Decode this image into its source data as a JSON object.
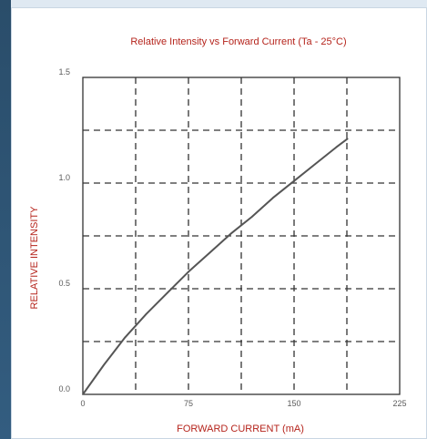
{
  "chart_data": {
    "type": "line",
    "title": "Relative Intensity vs Forward Current (Ta - 25°C)",
    "xlabel": "FORWARD CURRENT (mA)",
    "ylabel": "RELATIVE INTENSITY",
    "xlim": [
      0,
      225
    ],
    "ylim": [
      0,
      1.5
    ],
    "x_ticks": [
      0,
      75,
      150,
      225
    ],
    "x_tick_labels": [
      "0",
      "75",
      "150",
      "225"
    ],
    "y_ticks": [
      0,
      0.5,
      1.0,
      1.5
    ],
    "y_tick_labels": [
      "0.0",
      "0.5",
      "1.0",
      "1.5"
    ],
    "x_gridlines": [
      37.5,
      75,
      112.5,
      150,
      187.5
    ],
    "y_gridlines": [
      0.25,
      0.5,
      0.75,
      1.0,
      1.25
    ],
    "grid": true,
    "series": [
      {
        "x": [
          0,
          15,
          30,
          45,
          60,
          75,
          90,
          105,
          120,
          135,
          150,
          165,
          180,
          188
        ],
        "values": [
          0,
          0.14,
          0.27,
          0.38,
          0.48,
          0.58,
          0.67,
          0.76,
          0.84,
          0.93,
          1.01,
          1.09,
          1.17,
          1.21
        ]
      }
    ],
    "colors": {
      "title": "#b5241c",
      "line": "#555555",
      "grid": "#333333"
    }
  }
}
